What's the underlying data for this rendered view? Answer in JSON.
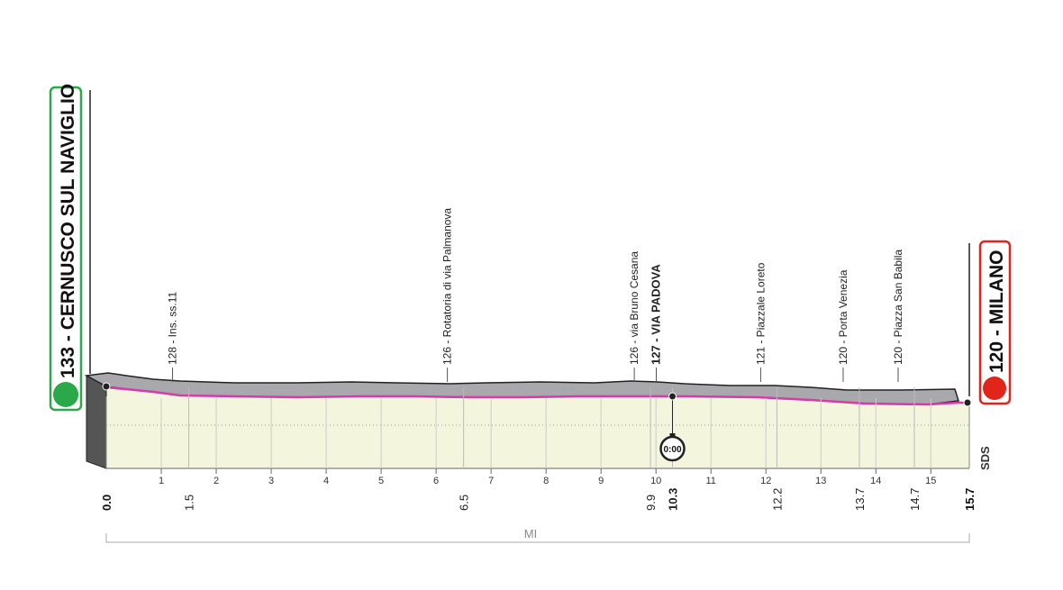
{
  "start": {
    "label": "133 - CERNUSCO SUL NAVIGLIO",
    "km": "0.0"
  },
  "finish": {
    "label": "120 - MILANO",
    "km": "15.7"
  },
  "waypoints": [
    {
      "label": "128 - Ins. ss.11",
      "km": "1.5"
    },
    {
      "label": "126 - Rotatoria di via Palmanova",
      "km": "6.5"
    },
    {
      "label": "126 - via Bruno Cesana",
      "km": "9.9"
    },
    {
      "label": "127 - VIA PADOVA",
      "km": "10.3",
      "bold": true
    },
    {
      "label": "121 - Piazzale Loreto",
      "km": "12.2"
    },
    {
      "label": "120 - Porta Venezia",
      "km": "13.7"
    },
    {
      "label": "120 - Piazza San Babila",
      "km": "14.7"
    }
  ],
  "km_ticks": [
    1,
    2,
    3,
    4,
    5,
    6,
    7,
    8,
    9,
    10,
    11,
    12,
    13,
    14,
    15
  ],
  "intermediate_time": "0:00",
  "distance_unit": "MI",
  "brand": "SDS"
}
